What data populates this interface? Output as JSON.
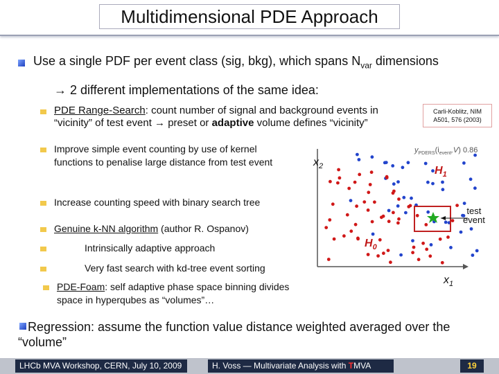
{
  "title": "Multidimensional PDE Approach",
  "main_bullet": {
    "prefix": "Use a single PDF per event class (sig, bkg), which spans N",
    "subscript": "var",
    "suffix": " dimensions"
  },
  "arrow_line": "→ 2 different implementations of the same idea:",
  "items": [
    {
      "label": "PDE Range-Search",
      "text1": ": count number of signal and background events in",
      "text2": "“vicinity” of test event → preset or ",
      "bold": "adaptive",
      "text3": " volume defines “vicinity”"
    },
    {
      "text": "Improve simple event counting by use of kernel functions to penalise large distance from test event"
    },
    {
      "text": "Increase counting speed with binary search tree"
    },
    {
      "label": "Genuine k-NN algorithm",
      "text": " (author R. Ospanov)"
    },
    {
      "text": "Intrinsically adaptive approach"
    },
    {
      "text": "Very fast search with kd-tree event sorting"
    },
    {
      "label": "PDE-Foam",
      "text": ": self adaptive phase space binning divides space in hyperqubes as “volumes”…"
    }
  ],
  "reference": {
    "line1": "Carli-Koblitz, NIM",
    "line2": "A501, 576 (2003)"
  },
  "chart": {
    "x_label": "x",
    "x_sub": "1",
    "y_label": "x",
    "y_sub": "2",
    "h1_label": "H",
    "h1_sub": "1",
    "h0_label": "H",
    "h0_sub": "0",
    "test_label_1": "test",
    "test_label_2": "event",
    "formula_text": "y",
    "formula_sub": "PDERS",
    "formula_rest": "(i",
    "formula_sub2": "event",
    "formula_v": ",V",
    "formula_val": ") 0.86",
    "colors": {
      "signal": "#2244cc",
      "background": "#d01818",
      "box": "#c02020",
      "star": "#22aa22"
    }
  },
  "regression": "Regression: assume the function value distance weighted averaged over the “volume”",
  "footer": {
    "left": "LHCb MVA Workshop, CERN, July 10, 2009",
    "center_prefix": "H. Voss — Multivariate Analysis with ",
    "center_t": "T",
    "center_suffix": "MVA",
    "page": "19"
  }
}
